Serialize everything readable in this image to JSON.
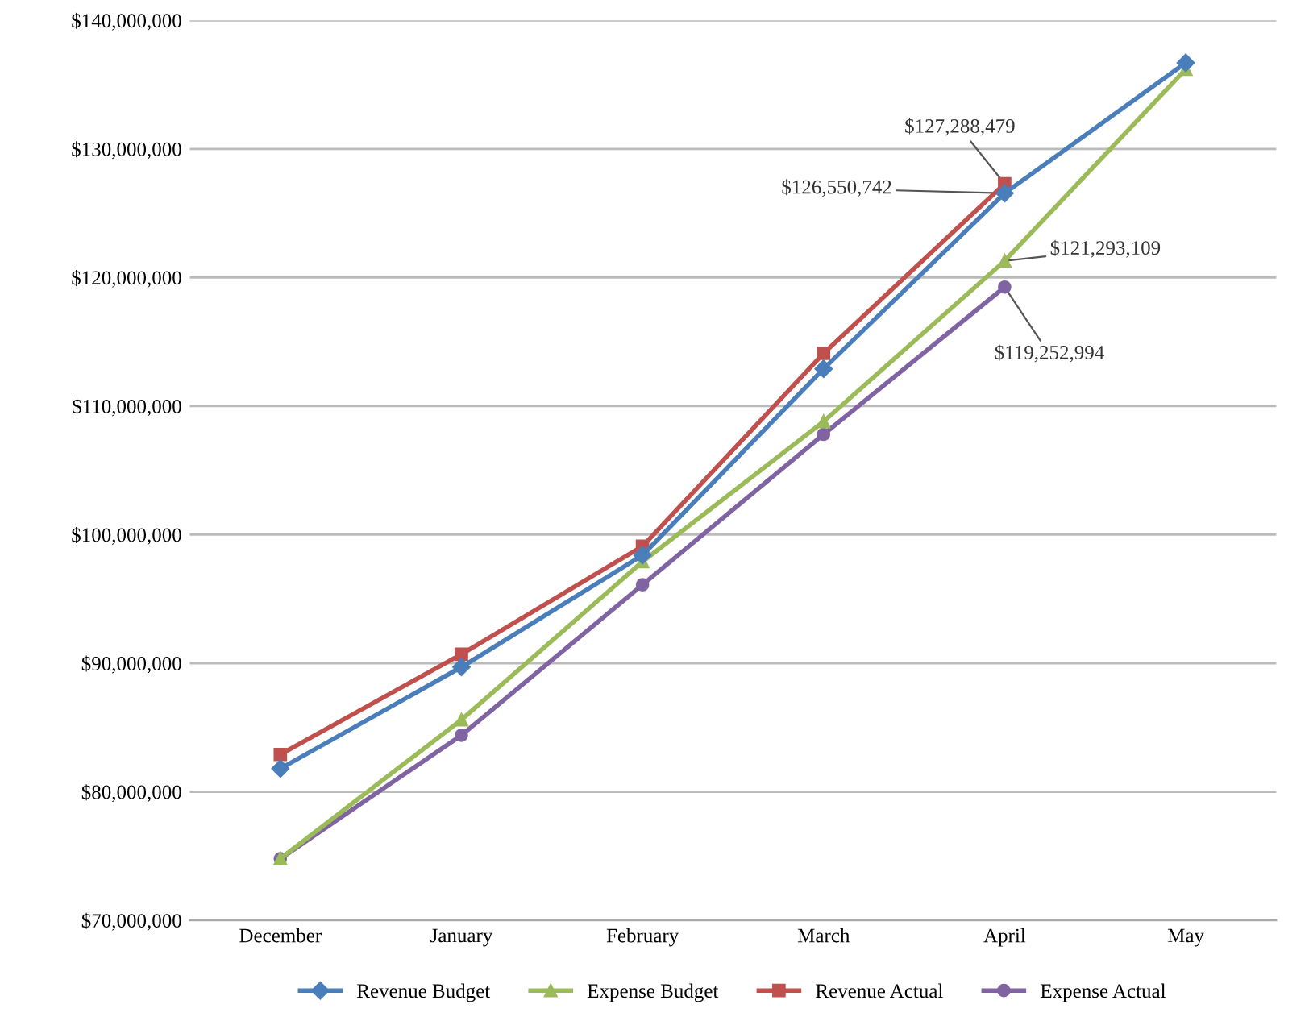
{
  "chart_data": {
    "type": "line",
    "categories": [
      "December",
      "January",
      "February",
      "March",
      "April",
      "May"
    ],
    "series": [
      {
        "name": "Revenue Budget",
        "color": "#4a7ebb",
        "marker": "diamond",
        "values": [
          81800000.0,
          89700000.0,
          98400000.0,
          112900000.0,
          126550742,
          136700000.0
        ],
        "value_labels": [
          null,
          null,
          null,
          null,
          "$126,550,742",
          null
        ]
      },
      {
        "name": "Expense Budget",
        "color": "#9bbb59",
        "marker": "triangle",
        "values": [
          74800000.0,
          85600000.0,
          97900000.0,
          108800000.0,
          121293109,
          136200000.0
        ],
        "value_labels": [
          null,
          null,
          null,
          null,
          "$121,293,109",
          null
        ]
      },
      {
        "name": "Revenue Actual",
        "color": "#c0504d",
        "marker": "square",
        "values": [
          82900000.0,
          90700000.0,
          99100000.0,
          114100000.0,
          127288479,
          null
        ],
        "value_labels": [
          null,
          null,
          null,
          null,
          "$127,288,479",
          null
        ]
      },
      {
        "name": "Expense Actual",
        "color": "#8064a2",
        "marker": "circle",
        "values": [
          74800000.0,
          84400000.0,
          96100000.0,
          107800000.0,
          119252994,
          null
        ],
        "value_labels": [
          null,
          null,
          null,
          null,
          "$119,252,994",
          null
        ]
      }
    ],
    "ylim": [
      70000000,
      140000000
    ],
    "yticks": [
      {
        "value": 70000000,
        "label": "$70,000,000"
      },
      {
        "value": 80000000,
        "label": "$80,000,000"
      },
      {
        "value": 90000000,
        "label": "$90,000,000"
      },
      {
        "value": 100000000,
        "label": "$100,000,000"
      },
      {
        "value": 110000000,
        "label": "$110,000,000"
      },
      {
        "value": 120000000,
        "label": "$120,000,000"
      },
      {
        "value": 130000000,
        "label": "$130,000,000"
      },
      {
        "value": 140000000,
        "label": "$140,000,000"
      }
    ],
    "grid": "y",
    "legend": "bottom",
    "line_style": "solid"
  }
}
